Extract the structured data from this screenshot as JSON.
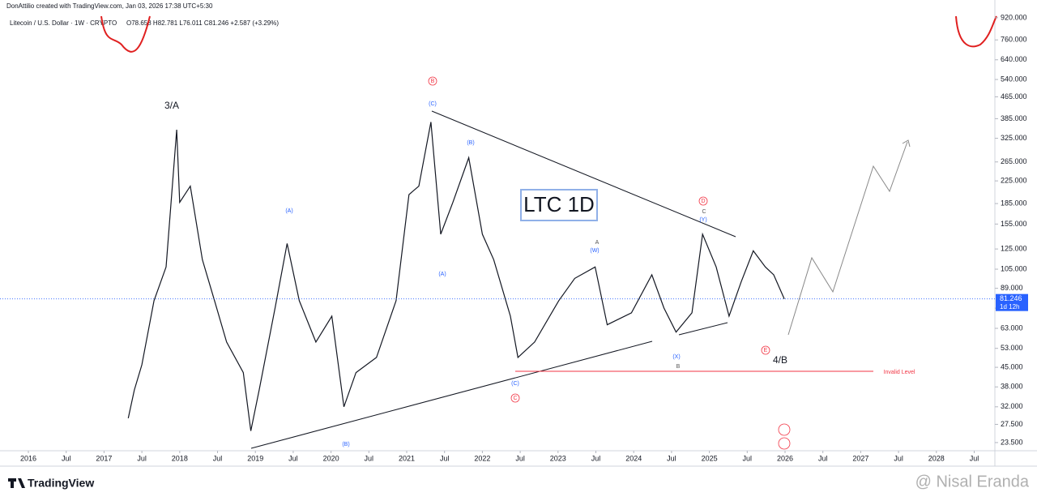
{
  "header": {
    "author_line": "DonAttilio created with TradingView.com, Jan 03, 2026 17:38 UTC+5:30",
    "symbol": "Litecoin / U.S. Dollar · 1W · CRYPTO",
    "ohlc": "O78.658 H82.781 L76.011 C81.246 +2.587 (+3.29%)"
  },
  "chart_data": {
    "type": "line",
    "title": "LTC 1D",
    "color": "#131722",
    "log_scale": true,
    "x": [
      2017.32,
      2017.4,
      2017.5,
      2017.66,
      2017.82,
      2017.96,
      2018.0,
      2018.14,
      2018.3,
      2018.46,
      2018.62,
      2018.84,
      2018.94,
      2019.05,
      2019.26,
      2019.42,
      2019.58,
      2019.8,
      2020.01,
      2020.17,
      2020.33,
      2020.6,
      2020.86,
      2021.03,
      2021.16,
      2021.32,
      2021.45,
      2021.61,
      2021.82,
      2022.0,
      2022.15,
      2022.37,
      2022.47,
      2022.69,
      2023.01,
      2023.22,
      2023.49,
      2023.65,
      2023.97,
      2024.24,
      2024.4,
      2024.56,
      2024.77,
      2024.91,
      2025.09,
      2025.26,
      2025.42,
      2025.58,
      2025.74,
      2025.85,
      2025.99
    ],
    "values": [
      29,
      37,
      46,
      80,
      107,
      350,
      187,
      215,
      114,
      80,
      56,
      43,
      26,
      37,
      75,
      131,
      80,
      56,
      70,
      32,
      43,
      49,
      80,
      200,
      215,
      374,
      142,
      187,
      275,
      142,
      114,
      70,
      49,
      56,
      80,
      97,
      107,
      65,
      72,
      100,
      75,
      61,
      72,
      142,
      107,
      70,
      94,
      123,
      107,
      100,
      81.246
    ],
    "last_price": 81.246,
    "countdown": "1d 12h",
    "xlim": [
      2015.625,
      2028.773
    ],
    "ylim": [
      21.9,
      1000
    ],
    "xticks": [
      2016,
      {
        "value": 2016.5,
        "label": "Jul"
      },
      2017,
      {
        "value": 2017.5,
        "label": "Jul"
      },
      2018,
      {
        "value": 2018.5,
        "label": "Jul"
      },
      2019,
      {
        "value": 2019.5,
        "label": "Jul"
      },
      2020,
      {
        "value": 2020.5,
        "label": "Jul"
      },
      2021,
      {
        "value": 2021.5,
        "label": "Jul"
      },
      2022,
      {
        "value": 2022.5,
        "label": "Jul"
      },
      2023,
      {
        "value": 2023.5,
        "label": "Jul"
      },
      2024,
      {
        "value": 2024.5,
        "label": "Jul"
      },
      2025,
      {
        "value": 2025.5,
        "label": "Jul"
      },
      2026,
      {
        "value": 2026.5,
        "label": "Jul"
      },
      2027,
      {
        "value": 2027.5,
        "label": "Jul"
      },
      2028,
      {
        "value": 2028.5,
        "label": "Jul"
      }
    ],
    "yticks": [
      {
        "value": 920,
        "label": "920.000"
      },
      {
        "value": 760,
        "label": "760.000"
      },
      {
        "value": 640,
        "label": "640.000"
      },
      {
        "value": 540,
        "label": "540.000"
      },
      {
        "value": 465,
        "label": "465.000"
      },
      {
        "value": 385,
        "label": "385.000"
      },
      {
        "value": 325,
        "label": "325.000"
      },
      {
        "value": 265,
        "label": "265.000"
      },
      {
        "value": 225,
        "label": "225.000"
      },
      {
        "value": 185,
        "label": "185.000"
      },
      {
        "value": 155,
        "label": "155.000"
      },
      {
        "value": 125,
        "label": "125.000"
      },
      {
        "value": 105,
        "label": "105.000"
      },
      {
        "value": 89,
        "label": "89.000"
      },
      {
        "value": 75,
        "label": "75.000"
      },
      {
        "value": 63,
        "label": "63.000"
      },
      {
        "value": 53,
        "label": "53.000"
      },
      {
        "value": 45,
        "label": "45.000"
      },
      {
        "value": 38,
        "label": "38.000"
      },
      {
        "value": 32,
        "label": "32.000"
      },
      {
        "value": 27.5,
        "label": "27.500"
      },
      {
        "value": 23.5,
        "label": "23.500"
      }
    ],
    "annotations": [
      "3/A",
      "(A)",
      "(B)",
      "(C)",
      "B",
      "(B)",
      "(A)",
      "(C)",
      "C",
      "A",
      "(W)",
      "(X)",
      "B",
      "D",
      "C",
      "(Y)",
      "E",
      "4/B",
      "Invalid Level"
    ]
  },
  "footer": {
    "brand": "TradingView",
    "watermark": "@ Nisal Eranda"
  }
}
